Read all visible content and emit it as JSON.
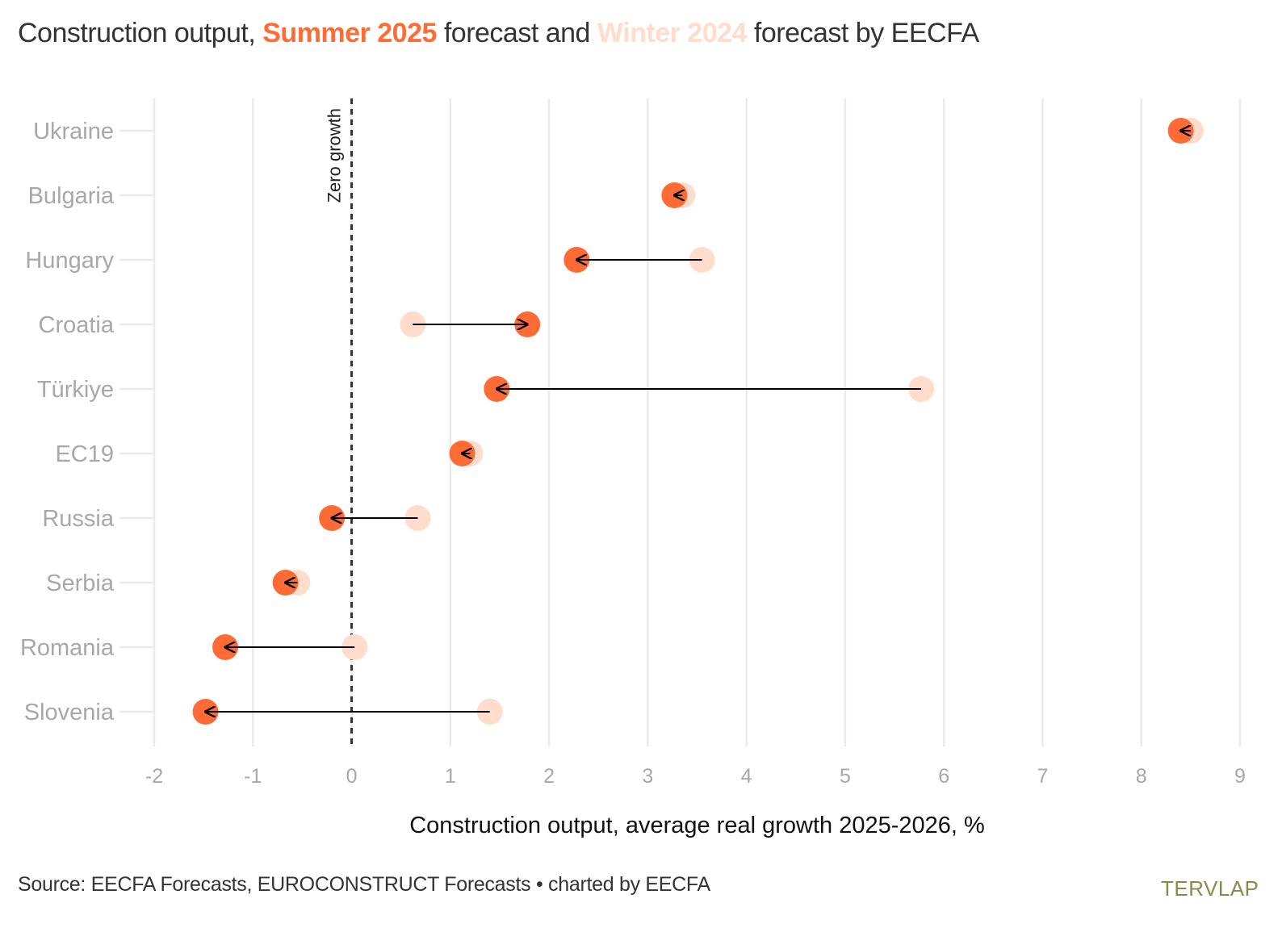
{
  "title": {
    "prefix": "Construction output, ",
    "summer": "Summer 2025",
    "middle": " forecast and ",
    "winter": "Winter 2024",
    "suffix": " forecast by EECFA"
  },
  "source": "Source: EECFA Forecasts, EUROCONSTRUCT Forecasts • charted by EECFA",
  "logo": "TERVLAP",
  "colors": {
    "summer": "#FF6B35",
    "winter": "#FFDCCB",
    "grid": "#EBEBEB",
    "zero_line": "#333333",
    "arrow": "#000000"
  },
  "chart_data": {
    "type": "scatter",
    "subtype": "dumbbell-arrow",
    "xlabel": "Construction output, average real growth 2025-2026, %",
    "xlim": [
      -2,
      9
    ],
    "xticks": [
      -2,
      -1,
      0,
      1,
      2,
      3,
      4,
      5,
      6,
      7,
      8,
      9
    ],
    "reference_line": {
      "x": 0,
      "label": "Zero growth",
      "style": "dashed"
    },
    "grid": true,
    "categories": [
      "Ukraine",
      "Bulgaria",
      "Hungary",
      "Croatia",
      "Türkiye",
      "EC19",
      "Russia",
      "Serbia",
      "Romania",
      "Slovenia"
    ],
    "series": [
      {
        "name": "Winter 2024",
        "values": [
          8.5,
          3.35,
          3.55,
          0.62,
          5.77,
          1.2,
          0.67,
          -0.55,
          0.03,
          1.4
        ]
      },
      {
        "name": "Summer 2025",
        "values": [
          8.4,
          3.27,
          2.28,
          1.78,
          1.47,
          1.12,
          -0.2,
          -0.67,
          -1.28,
          -1.48
        ]
      }
    ]
  }
}
